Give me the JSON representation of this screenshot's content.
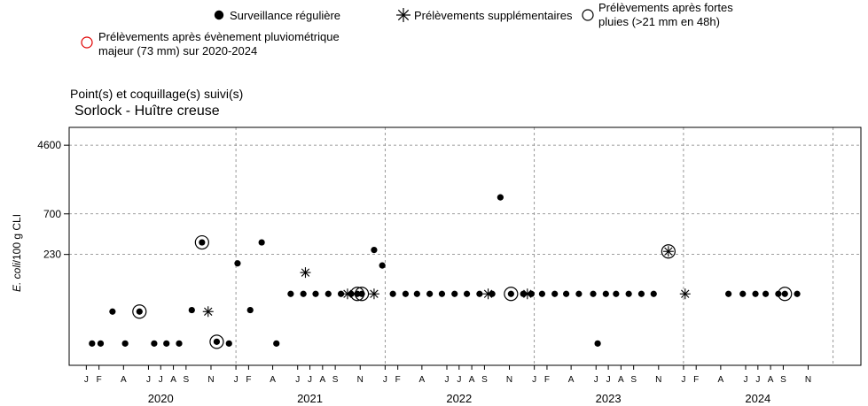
{
  "legend": {
    "regular": "Surveillance régulière",
    "supplementary": "Prélèvements supplémentaires",
    "heavy_rain_line1": "Prélèvements après fortes",
    "heavy_rain_line2": "pluies (>21 mm en 48h)",
    "major_event_line1": "Prélèvements après évènement pluviométrique",
    "major_event_line2": "majeur (73 mm) sur 2020-2024"
  },
  "header": {
    "label": "Point(s) et coquillage(s) suivi(s)",
    "site": "Sorlock - Huître creuse"
  },
  "colors": {
    "major_event": "#e00000",
    "grid": "#7f7f7f",
    "marker": "#000000"
  },
  "chart_data": {
    "type": "scatter",
    "xlabel": "",
    "ylabel_italic": "E. coli",
    "ylabel_rest": "/100 g CLI",
    "y_scale": "log",
    "y_ticks": [
      "4600",
      "700",
      "230"
    ],
    "y_gridlines": [
      4600,
      700,
      230
    ],
    "month_ticks": [
      {
        "date": "2020-01-01",
        "label": "J"
      },
      {
        "date": "2020-02-01",
        "label": "F"
      },
      {
        "date": "2020-04-01",
        "label": "A"
      },
      {
        "date": "2020-06-01",
        "label": "J"
      },
      {
        "date": "2020-07-01",
        "label": "J"
      },
      {
        "date": "2020-08-01",
        "label": "A"
      },
      {
        "date": "2020-09-01",
        "label": "S"
      },
      {
        "date": "2020-11-01",
        "label": "N"
      },
      {
        "date": "2021-01-01",
        "label": "J"
      },
      {
        "date": "2021-02-01",
        "label": "F"
      },
      {
        "date": "2021-04-01",
        "label": "A"
      },
      {
        "date": "2021-06-01",
        "label": "J"
      },
      {
        "date": "2021-07-01",
        "label": "J"
      },
      {
        "date": "2021-08-01",
        "label": "A"
      },
      {
        "date": "2021-09-01",
        "label": "S"
      },
      {
        "date": "2021-11-01",
        "label": "N"
      },
      {
        "date": "2022-01-01",
        "label": "J"
      },
      {
        "date": "2022-02-01",
        "label": "F"
      },
      {
        "date": "2022-04-01",
        "label": "A"
      },
      {
        "date": "2022-06-01",
        "label": "J"
      },
      {
        "date": "2022-07-01",
        "label": "J"
      },
      {
        "date": "2022-08-01",
        "label": "A"
      },
      {
        "date": "2022-09-01",
        "label": "S"
      },
      {
        "date": "2022-11-01",
        "label": "N"
      },
      {
        "date": "2023-01-01",
        "label": "J"
      },
      {
        "date": "2023-02-01",
        "label": "F"
      },
      {
        "date": "2023-04-01",
        "label": "A"
      },
      {
        "date": "2023-06-01",
        "label": "J"
      },
      {
        "date": "2023-07-01",
        "label": "J"
      },
      {
        "date": "2023-08-01",
        "label": "A"
      },
      {
        "date": "2023-09-01",
        "label": "S"
      },
      {
        "date": "2023-11-01",
        "label": "N"
      },
      {
        "date": "2024-01-01",
        "label": "J"
      },
      {
        "date": "2024-02-01",
        "label": "F"
      },
      {
        "date": "2024-04-01",
        "label": "A"
      },
      {
        "date": "2024-06-01",
        "label": "J"
      },
      {
        "date": "2024-07-01",
        "label": "J"
      },
      {
        "date": "2024-08-01",
        "label": "A"
      },
      {
        "date": "2024-09-01",
        "label": "S"
      },
      {
        "date": "2024-11-01",
        "label": "N"
      }
    ],
    "year_labels": [
      {
        "label": "2020",
        "date": "2020-07-01"
      },
      {
        "label": "2021",
        "date": "2021-07-01"
      },
      {
        "label": "2022",
        "date": "2022-07-01"
      },
      {
        "label": "2023",
        "date": "2023-07-01"
      },
      {
        "label": "2024",
        "date": "2024-07-01"
      }
    ],
    "year_boundaries": [
      "2021-01-01",
      "2022-01-01",
      "2023-01-01",
      "2024-01-01",
      "2025-01-01"
    ],
    "x_range": [
      "2019-11-20",
      "2025-03-10"
    ],
    "y_range": [
      11,
      7500
    ],
    "grid": true,
    "legend_position": "top",
    "series": [
      {
        "key": "regular",
        "marker": "dot",
        "points": [
          {
            "x": "2020-01-15",
            "y": 20
          },
          {
            "x": "2020-02-05",
            "y": 20
          },
          {
            "x": "2020-03-05",
            "y": 48
          },
          {
            "x": "2020-04-05",
            "y": 20
          },
          {
            "x": "2020-05-10",
            "y": 48
          },
          {
            "x": "2020-06-15",
            "y": 20
          },
          {
            "x": "2020-07-15",
            "y": 20
          },
          {
            "x": "2020-08-15",
            "y": 20
          },
          {
            "x": "2020-09-15",
            "y": 50
          },
          {
            "x": "2020-10-10",
            "y": 320
          },
          {
            "x": "2020-11-15",
            "y": 21
          },
          {
            "x": "2020-12-15",
            "y": 20
          },
          {
            "x": "2021-01-05",
            "y": 180
          },
          {
            "x": "2021-02-05",
            "y": 50
          },
          {
            "x": "2021-03-05",
            "y": 320
          },
          {
            "x": "2021-04-10",
            "y": 20
          },
          {
            "x": "2021-05-15",
            "y": 78
          },
          {
            "x": "2021-06-15",
            "y": 78
          },
          {
            "x": "2021-07-15",
            "y": 78
          },
          {
            "x": "2021-08-15",
            "y": 78
          },
          {
            "x": "2021-09-15",
            "y": 78
          },
          {
            "x": "2021-10-10",
            "y": 78
          },
          {
            "x": "2021-10-25",
            "y": 78
          },
          {
            "x": "2021-11-05",
            "y": 78
          },
          {
            "x": "2021-12-05",
            "y": 260
          },
          {
            "x": "2021-12-25",
            "y": 170
          },
          {
            "x": "2022-01-20",
            "y": 78
          },
          {
            "x": "2022-02-20",
            "y": 78
          },
          {
            "x": "2022-03-20",
            "y": 78
          },
          {
            "x": "2022-04-20",
            "y": 78
          },
          {
            "x": "2022-05-20",
            "y": 78
          },
          {
            "x": "2022-06-20",
            "y": 78
          },
          {
            "x": "2022-07-20",
            "y": 78
          },
          {
            "x": "2022-08-20",
            "y": 78
          },
          {
            "x": "2022-09-20",
            "y": 78
          },
          {
            "x": "2022-10-10",
            "y": 1100
          },
          {
            "x": "2022-11-05",
            "y": 78
          },
          {
            "x": "2022-12-05",
            "y": 78
          },
          {
            "x": "2022-12-25",
            "y": 78
          },
          {
            "x": "2023-01-20",
            "y": 78
          },
          {
            "x": "2023-02-20",
            "y": 78
          },
          {
            "x": "2023-03-20",
            "y": 78
          },
          {
            "x": "2023-04-20",
            "y": 78
          },
          {
            "x": "2023-05-25",
            "y": 78
          },
          {
            "x": "2023-06-05",
            "y": 20
          },
          {
            "x": "2023-06-25",
            "y": 78
          },
          {
            "x": "2023-07-20",
            "y": 78
          },
          {
            "x": "2023-08-20",
            "y": 78
          },
          {
            "x": "2023-09-20",
            "y": 78
          },
          {
            "x": "2023-10-20",
            "y": 78
          },
          {
            "x": "2024-04-20",
            "y": 78
          },
          {
            "x": "2024-05-25",
            "y": 78
          },
          {
            "x": "2024-06-25",
            "y": 78
          },
          {
            "x": "2024-07-20",
            "y": 78
          },
          {
            "x": "2024-08-20",
            "y": 78
          },
          {
            "x": "2024-09-05",
            "y": 78
          },
          {
            "x": "2024-10-05",
            "y": 78
          }
        ]
      },
      {
        "key": "supplementary",
        "marker": "asterisk",
        "points": [
          {
            "x": "2020-10-25",
            "y": 48
          },
          {
            "x": "2021-06-20",
            "y": 140
          },
          {
            "x": "2021-10-01",
            "y": 78
          },
          {
            "x": "2021-12-05",
            "y": 78
          },
          {
            "x": "2022-09-10",
            "y": 78
          },
          {
            "x": "2022-12-15",
            "y": 78
          },
          {
            "x": "2023-11-25",
            "y": 250
          },
          {
            "x": "2024-01-05",
            "y": 78
          }
        ]
      },
      {
        "key": "heavy_rain",
        "marker": "circle",
        "points": [
          {
            "x": "2020-05-10",
            "y": 48
          },
          {
            "x": "2020-10-10",
            "y": 320
          },
          {
            "x": "2020-11-15",
            "y": 21
          },
          {
            "x": "2021-10-25",
            "y": 78
          },
          {
            "x": "2021-11-05",
            "y": 78
          },
          {
            "x": "2022-11-05",
            "y": 78
          },
          {
            "x": "2023-11-25",
            "y": 250
          },
          {
            "x": "2024-09-05",
            "y": 78
          }
        ]
      }
    ]
  }
}
